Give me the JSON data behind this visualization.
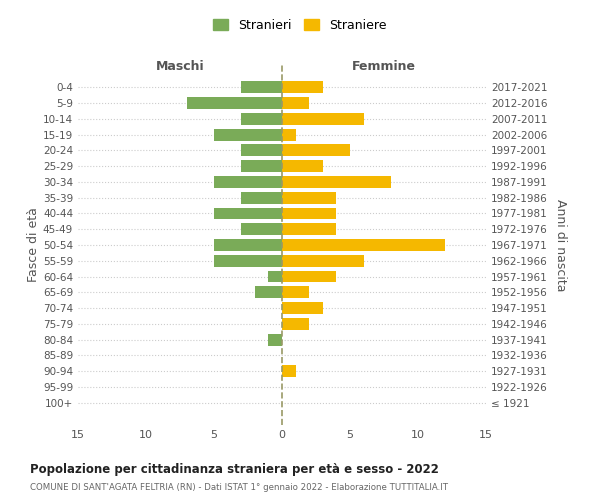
{
  "age_groups": [
    "100+",
    "95-99",
    "90-94",
    "85-89",
    "80-84",
    "75-79",
    "70-74",
    "65-69",
    "60-64",
    "55-59",
    "50-54",
    "45-49",
    "40-44",
    "35-39",
    "30-34",
    "25-29",
    "20-24",
    "15-19",
    "10-14",
    "5-9",
    "0-4"
  ],
  "birth_years": [
    "≤ 1921",
    "1922-1926",
    "1927-1931",
    "1932-1936",
    "1937-1941",
    "1942-1946",
    "1947-1951",
    "1952-1956",
    "1957-1961",
    "1962-1966",
    "1967-1971",
    "1972-1976",
    "1977-1981",
    "1982-1986",
    "1987-1991",
    "1992-1996",
    "1997-2001",
    "2002-2006",
    "2007-2011",
    "2012-2016",
    "2017-2021"
  ],
  "maschi": [
    0,
    0,
    0,
    0,
    1,
    0,
    0,
    2,
    1,
    5,
    5,
    3,
    5,
    3,
    5,
    3,
    3,
    5,
    3,
    7,
    3
  ],
  "femmine": [
    0,
    0,
    1,
    0,
    0,
    2,
    3,
    2,
    4,
    6,
    12,
    4,
    4,
    4,
    8,
    3,
    5,
    1,
    6,
    2,
    3
  ],
  "color_maschi": "#7aab58",
  "color_femmine": "#f5b800",
  "title_main": "Popolazione per cittadinanza straniera per età e sesso - 2022",
  "title_sub": "COMUNE DI SANT'AGATA FELTRIA (RN) - Dati ISTAT 1° gennaio 2022 - Elaborazione TUTTITALIA.IT",
  "label_maschi": "Maschi",
  "label_femmine": "Femmine",
  "legend_stranieri": "Stranieri",
  "legend_straniere": "Straniere",
  "ylabel_left": "Fasce di età",
  "ylabel_right": "Anni di nascita",
  "xlim": 15,
  "background_color": "#ffffff",
  "grid_color": "#cccccc"
}
